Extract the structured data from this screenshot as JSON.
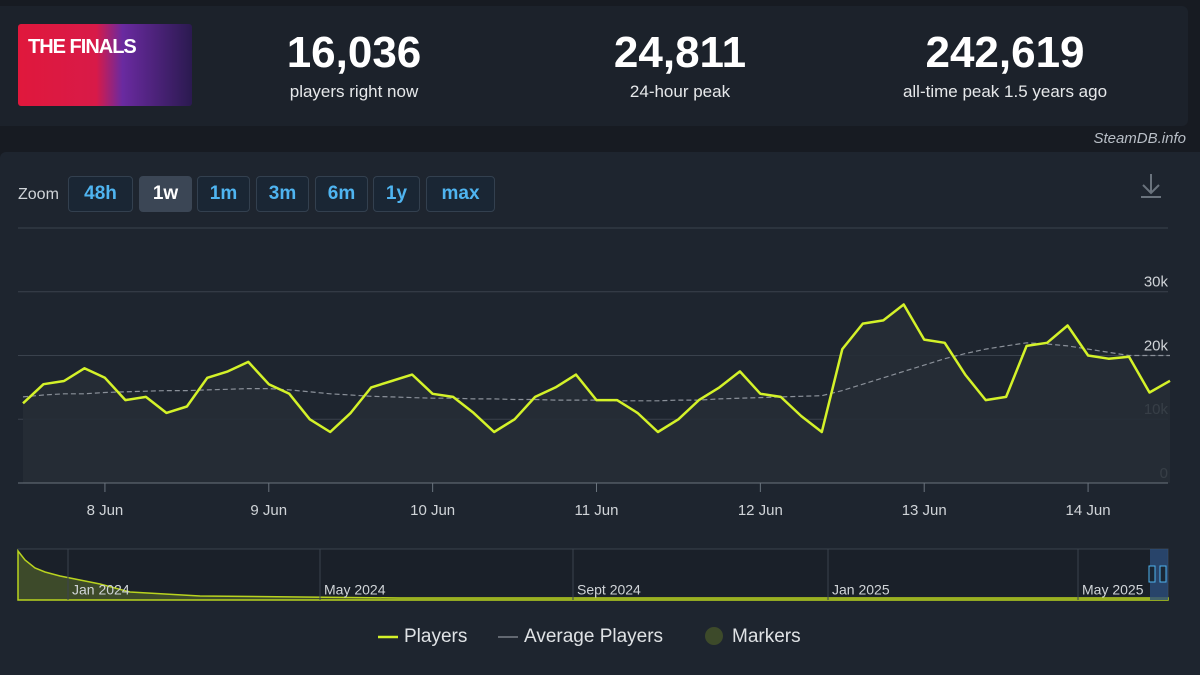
{
  "header": {
    "logo_text": "THE FINALS",
    "stats": [
      {
        "value": "16,036",
        "label": "players right now"
      },
      {
        "value": "24,811",
        "label": "24-hour peak"
      },
      {
        "value": "242,619",
        "label": "all-time peak 1.5 years ago"
      }
    ],
    "source": "SteamDB.info"
  },
  "zoom": {
    "label": "Zoom",
    "options": [
      "48h",
      "1w",
      "1m",
      "3m",
      "6m",
      "1y",
      "max"
    ],
    "active": "1w"
  },
  "chart_data": {
    "type": "line",
    "categories": [
      null,
      null,
      null,
      null,
      "8 Jun",
      null,
      null,
      null,
      null,
      null,
      null,
      null,
      "9 Jun",
      null,
      null,
      null,
      null,
      null,
      null,
      null,
      "10 Jun",
      null,
      null,
      null,
      null,
      null,
      null,
      null,
      "11 Jun",
      null,
      null,
      null,
      null,
      null,
      null,
      null,
      "12 Jun",
      null,
      null,
      null,
      null,
      null,
      null,
      null,
      "13 Jun",
      null,
      null,
      null,
      null,
      null,
      null,
      null,
      "14 Jun",
      null,
      null,
      null,
      null
    ],
    "series": [
      {
        "name": "Players",
        "color": "#d4f229",
        "values": [
          12500,
          15500,
          16000,
          18000,
          16500,
          13000,
          13500,
          11000,
          12000,
          16500,
          17500,
          19000,
          15500,
          14000,
          10000,
          8000,
          11000,
          15000,
          16000,
          17000,
          14000,
          13500,
          11000,
          8000,
          10000,
          13500,
          15000,
          17000,
          13000,
          13000,
          11000,
          8000,
          10000,
          13000,
          15000,
          17500,
          14000,
          13500,
          10500,
          8000,
          21000,
          25000,
          25500,
          28000,
          22500,
          22000,
          17000,
          13000,
          13500,
          21500,
          22000,
          24700,
          20000,
          19500,
          19800,
          14200,
          16036
        ]
      },
      {
        "name": "Average Players",
        "color": "#8a9099",
        "values": [
          13500,
          13800,
          14000,
          14000,
          14200,
          14300,
          14400,
          14500,
          14500,
          14600,
          14700,
          14800,
          14800,
          14600,
          14300,
          14000,
          13800,
          13600,
          13500,
          13400,
          13300,
          13300,
          13200,
          13200,
          13100,
          13100,
          13000,
          13000,
          13000,
          12900,
          12900,
          12900,
          13000,
          13000,
          13200,
          13300,
          13400,
          13500,
          13600,
          13700,
          14500,
          15500,
          16500,
          17500,
          18500,
          19500,
          20300,
          21000,
          21500,
          22000,
          21800,
          21500,
          21000,
          20500,
          20000,
          20000,
          20000
        ]
      }
    ],
    "markers_label": "Markers",
    "markers_color": "#3d4a2a",
    "ylim": [
      0,
      40000
    ],
    "yticks": [
      0,
      {
        "value": 10000,
        "label": "10k"
      },
      {
        "value": 20000,
        "label": "20k"
      },
      {
        "value": 30000,
        "label": "30k"
      }
    ],
    "grid": true,
    "navigator_labels": [
      "Jan 2024",
      "May 2024",
      "Sept 2024",
      "Jan 2025",
      "May 2025"
    ]
  }
}
